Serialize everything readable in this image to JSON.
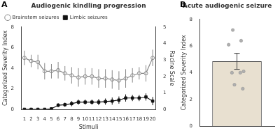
{
  "chart_data": [
    {
      "type": "line",
      "title": "Audiogenic kindling progression",
      "x_label": "Stimuli",
      "y_label": "Categorized Severity Index",
      "y2_label": "Racine Scale",
      "annotations": [
        "A"
      ],
      "x": [
        1,
        2,
        3,
        4,
        5,
        6,
        7,
        8,
        9,
        10,
        11,
        12,
        13,
        14,
        15,
        16,
        17,
        18,
        19,
        20
      ],
      "xlim": [
        0.5,
        20.5
      ],
      "xticks": [
        1,
        2,
        3,
        4,
        5,
        6,
        7,
        8,
        9,
        10,
        11,
        12,
        13,
        14,
        15,
        16,
        17,
        18,
        19,
        20
      ],
      "ylim": [
        0,
        8
      ],
      "yticks": [
        0,
        2,
        4,
        6,
        8
      ],
      "y2lim": [
        0,
        5
      ],
      "y2ticks": [
        0,
        1,
        2,
        3,
        4,
        5
      ],
      "grid": false,
      "legend": "upper left",
      "series": [
        {
          "name": "Brainstem seizures",
          "color": "#888888",
          "marker": "open_circle",
          "values": [
            5.0,
            4.7,
            4.6,
            3.7,
            3.7,
            3.8,
            3.5,
            3.3,
            3.1,
            3.2,
            3.2,
            3.0,
            3.0,
            2.9,
            2.8,
            3.0,
            3.3,
            3.5,
            3.5,
            5.0
          ],
          "errors": [
            0.7,
            0.6,
            0.7,
            0.8,
            0.7,
            0.8,
            0.7,
            0.8,
            0.9,
            0.8,
            0.8,
            0.9,
            0.9,
            0.9,
            0.9,
            0.9,
            0.7,
            0.6,
            0.8,
            0.8
          ]
        },
        {
          "name": "Limbic seizures",
          "color": "#111111",
          "marker": "square",
          "values": [
            0.0,
            0.0,
            0.0,
            0.0,
            0.05,
            0.4,
            0.45,
            0.55,
            0.7,
            0.7,
            0.7,
            0.7,
            0.75,
            0.8,
            0.9,
            1.1,
            1.1,
            1.1,
            1.2,
            0.8
          ],
          "errors": [
            0.0,
            0.0,
            0.0,
            0.0,
            0.05,
            0.2,
            0.2,
            0.25,
            0.25,
            0.25,
            0.25,
            0.3,
            0.3,
            0.35,
            0.35,
            0.35,
            0.3,
            0.3,
            0.35,
            0.4
          ]
        }
      ]
    },
    {
      "type": "bar",
      "title": "Acute audiogenic seizure",
      "y_label": "Categorized Severity Index",
      "annotations": [
        "B"
      ],
      "xlim": [
        -0.45,
        0.45
      ],
      "ylim": [
        0,
        8
      ],
      "yticks": [
        0,
        2,
        4,
        6,
        8
      ],
      "tick_labels": "y",
      "grid": false,
      "series": [
        {
          "type": "bar",
          "color": "#e8e0d0",
          "x": [
            0
          ],
          "values": [
            4.85
          ],
          "errors": [
            0.6
          ]
        },
        {
          "type": "scatter",
          "color": "#b0b0b0",
          "marker": "circle",
          "x": [
            -0.05,
            0.05,
            -0.1,
            0.08,
            -0.06,
            0.04,
            -0.03,
            0.07
          ],
          "values": [
            7.2,
            6.4,
            6.1,
            4.1,
            4.0,
            4.0,
            3.1,
            2.8
          ]
        }
      ]
    }
  ]
}
